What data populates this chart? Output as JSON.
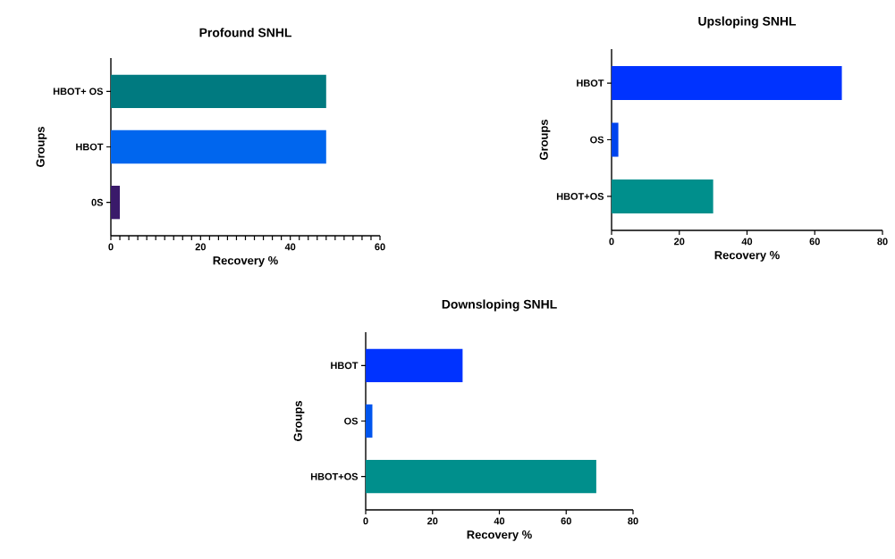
{
  "chart_data": [
    {
      "type": "bar",
      "orientation": "horizontal",
      "title": "Profound SNHL",
      "xlabel": "Recovery %",
      "ylabel": "Groups",
      "categories": [
        "HBOT+ OS",
        "HBOT",
        "0S"
      ],
      "values": [
        48,
        48,
        2
      ],
      "colors": [
        "#007a80",
        "#0066ee",
        "#3a1a6a"
      ],
      "xlim": [
        0,
        60
      ],
      "xticks": [
        0,
        {
          "value": 2,
          "label": null
        },
        {
          "value": 4,
          "label": null
        },
        {
          "value": 6,
          "label": null
        },
        {
          "value": 8,
          "label": null
        },
        {
          "value": 10,
          "label": null
        },
        {
          "value": 12,
          "label": null
        },
        {
          "value": 14,
          "label": null
        },
        {
          "value": 16,
          "label": null
        },
        {
          "value": 18,
          "label": null
        },
        20,
        {
          "value": 22,
          "label": null
        },
        {
          "value": 24,
          "label": null
        },
        {
          "value": 26,
          "label": null
        },
        {
          "value": 28,
          "label": null
        },
        {
          "value": 30,
          "label": null
        },
        {
          "value": 32,
          "label": null
        },
        {
          "value": 34,
          "label": null
        },
        {
          "value": 36,
          "label": null
        },
        {
          "value": 38,
          "label": null
        },
        40,
        {
          "value": 42,
          "label": null
        },
        {
          "value": 44,
          "label": null
        },
        {
          "value": 46,
          "label": null
        },
        {
          "value": 48,
          "label": null
        },
        {
          "value": 50,
          "label": null
        },
        {
          "value": 52,
          "label": null
        },
        {
          "value": 54,
          "label": null
        },
        {
          "value": 56,
          "label": null
        },
        {
          "value": 58,
          "label": null
        },
        60
      ]
    },
    {
      "type": "bar",
      "orientation": "horizontal",
      "title": "Upsloping SNHL",
      "xlabel": "Recovery %",
      "ylabel": "Groups",
      "categories": [
        "HBOT",
        "OS",
        "HBOT+OS"
      ],
      "values": [
        68,
        2,
        30
      ],
      "colors": [
        "#0033ff",
        "#0044ee",
        "#008f8c"
      ],
      "xlim": [
        0,
        80
      ],
      "xticks": [
        0,
        20,
        40,
        60,
        80
      ]
    },
    {
      "type": "bar",
      "orientation": "horizontal",
      "title": "Downsloping SNHL",
      "xlabel": "Recovery %",
      "ylabel": "Groups",
      "categories": [
        "HBOT",
        "OS",
        "HBOT+OS"
      ],
      "values": [
        29,
        2,
        69
      ],
      "colors": [
        "#0033ff",
        "#0055ee",
        "#008f8c"
      ],
      "xlim": [
        0,
        80
      ],
      "xticks": [
        0,
        20,
        40,
        60,
        80
      ]
    }
  ]
}
